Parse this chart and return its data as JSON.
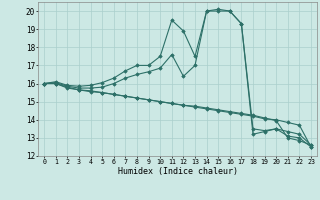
{
  "xlabel": "Humidex (Indice chaleur)",
  "bg_color": "#cce8e4",
  "grid_color": "#aacfcc",
  "line_color": "#2d7068",
  "xlim": [
    -0.5,
    23.5
  ],
  "ylim": [
    12,
    20.5
  ],
  "xticks": [
    0,
    1,
    2,
    3,
    4,
    5,
    6,
    7,
    8,
    9,
    10,
    11,
    12,
    13,
    14,
    15,
    16,
    17,
    18,
    19,
    20,
    21,
    22,
    23
  ],
  "yticks": [
    12,
    13,
    14,
    15,
    16,
    17,
    18,
    19,
    20
  ],
  "lines": [
    {
      "x": [
        0,
        1,
        2,
        3,
        4,
        5,
        6,
        7,
        8,
        9,
        10,
        11,
        12,
        13,
        14,
        15,
        16,
        17,
        18,
        19,
        20,
        21,
        22,
        23
      ],
      "y": [
        16.0,
        16.1,
        15.9,
        15.85,
        15.9,
        16.05,
        16.3,
        16.7,
        17.0,
        17.0,
        17.5,
        19.5,
        18.9,
        17.5,
        20.0,
        20.1,
        20.0,
        19.3,
        13.2,
        13.35,
        13.5,
        13.1,
        13.0,
        12.5
      ]
    },
    {
      "x": [
        0,
        1,
        2,
        3,
        4,
        5,
        6,
        7,
        8,
        9,
        10,
        11,
        12,
        13,
        14,
        15,
        16,
        17,
        18,
        19,
        20,
        21,
        22,
        23
      ],
      "y": [
        16.0,
        16.05,
        15.85,
        15.75,
        15.75,
        15.8,
        16.0,
        16.3,
        16.5,
        16.65,
        16.85,
        17.6,
        16.4,
        17.0,
        20.0,
        20.0,
        20.0,
        19.3,
        13.5,
        13.4,
        13.5,
        13.35,
        13.2,
        12.6
      ]
    },
    {
      "x": [
        0,
        1,
        2,
        3,
        4,
        5,
        6,
        7,
        8,
        9,
        10,
        11,
        12,
        13,
        14,
        15,
        16,
        17,
        18,
        19,
        20,
        21,
        22,
        23
      ],
      "y": [
        16.0,
        16.0,
        15.8,
        15.65,
        15.6,
        15.5,
        15.4,
        15.3,
        15.2,
        15.1,
        15.0,
        14.9,
        14.8,
        14.7,
        14.6,
        14.5,
        14.4,
        14.3,
        14.2,
        14.05,
        14.0,
        13.85,
        13.7,
        12.5
      ]
    },
    {
      "x": [
        0,
        1,
        2,
        3,
        4,
        5,
        6,
        7,
        8,
        9,
        10,
        11,
        12,
        13,
        14,
        15,
        16,
        17,
        18,
        19,
        20,
        21,
        22,
        23
      ],
      "y": [
        16.0,
        16.0,
        15.75,
        15.65,
        15.55,
        15.5,
        15.4,
        15.3,
        15.2,
        15.1,
        15.0,
        14.9,
        14.8,
        14.75,
        14.65,
        14.55,
        14.45,
        14.35,
        14.25,
        14.1,
        13.95,
        13.0,
        12.85,
        12.6
      ]
    }
  ]
}
